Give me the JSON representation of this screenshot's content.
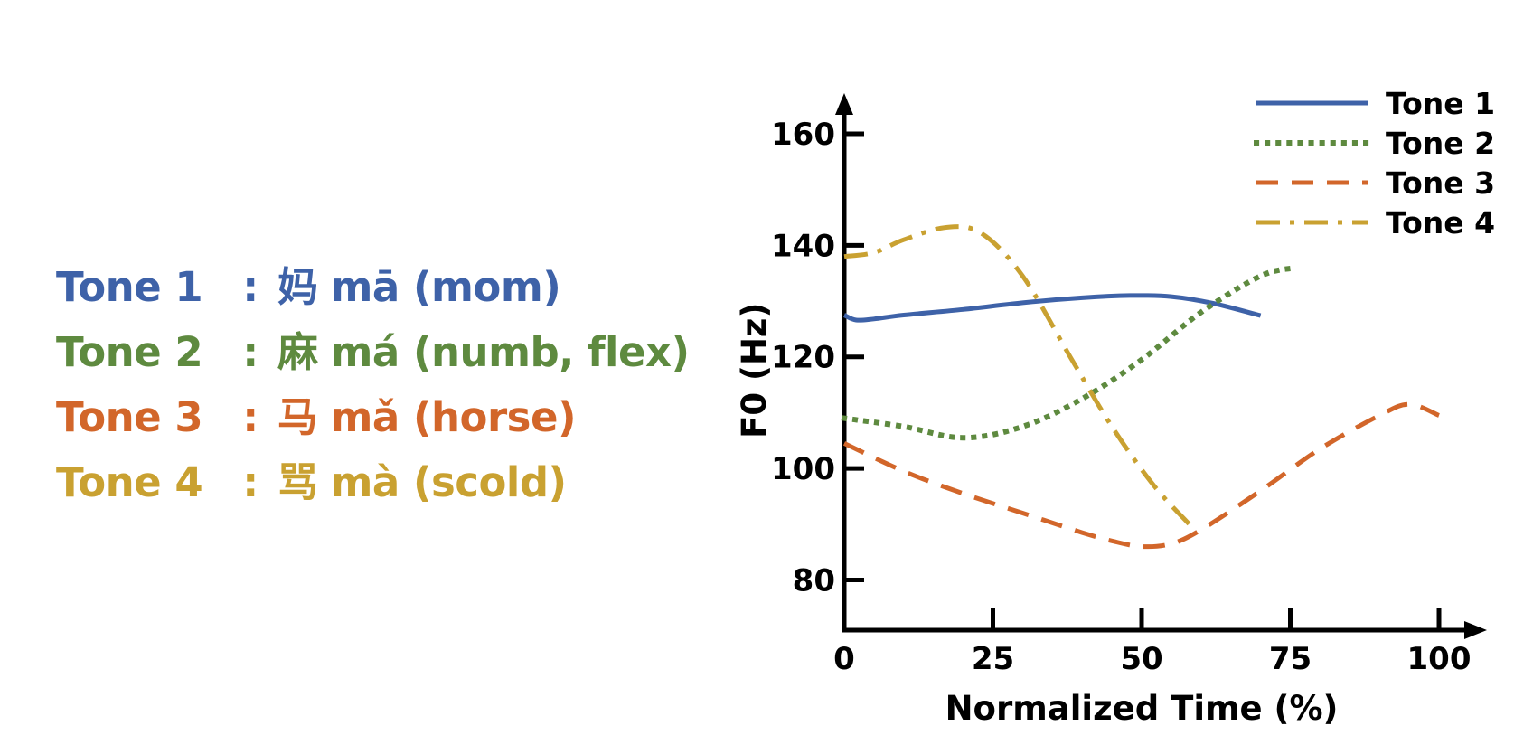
{
  "tones": [
    {
      "label": "Tone 1",
      "separator": ":",
      "character": "妈",
      "pinyin": "mā",
      "gloss": "(mom)",
      "color": "#3E62A8"
    },
    {
      "label": "Tone 2",
      "separator": ":",
      "character": "麻",
      "pinyin": "má",
      "gloss": "(numb, flex)",
      "color": "#5E8A3F"
    },
    {
      "label": "Tone 3",
      "separator": ":",
      "character": "马",
      "pinyin": "mǎ",
      "gloss": "(horse)",
      "color": "#D2662A"
    },
    {
      "label": "Tone 4",
      "separator": ":",
      "character": "骂",
      "pinyin": "mà",
      "gloss": "(scold)",
      "color": "#C9A131"
    }
  ],
  "chart_data": {
    "type": "line",
    "title": "",
    "xlabel": "Normalized Time (%)",
    "ylabel": "F0 (Hz)",
    "xlim": [
      0,
      100
    ],
    "ylim": [
      71,
      160
    ],
    "xticks": [
      0,
      25,
      50,
      75,
      100
    ],
    "yticks": [
      80,
      100,
      120,
      140,
      160
    ],
    "grid": false,
    "legend_position": "top-right",
    "series": [
      {
        "name": "Tone 1",
        "color": "#3E62A8",
        "style": "solid",
        "x": [
          0,
          2,
          5,
          10,
          20,
          30,
          40,
          48,
          55,
          62,
          70
        ],
        "y": [
          127.5,
          126.6,
          126.8,
          127.5,
          128.5,
          129.7,
          130.6,
          131.0,
          130.8,
          129.6,
          127.4
        ]
      },
      {
        "name": "Tone 2",
        "color": "#5E8A3F",
        "style": "dotted",
        "x": [
          0,
          10,
          20,
          30,
          40,
          50,
          60,
          70,
          76
        ],
        "y": [
          109,
          107.5,
          105.5,
          107.5,
          112.5,
          119.5,
          128,
          134.5,
          136
        ]
      },
      {
        "name": "Tone 3",
        "color": "#D2662A",
        "style": "dashed",
        "x": [
          0,
          10,
          20,
          30,
          40,
          45,
          50,
          55,
          60,
          70,
          80,
          90,
          95,
          100
        ],
        "y": [
          104.5,
          99.5,
          95.5,
          92,
          88.5,
          87,
          86,
          86.5,
          89,
          96,
          103.5,
          109.5,
          111.5,
          109.5
        ]
      },
      {
        "name": "Tone 4",
        "color": "#C9A131",
        "style": "dashdot",
        "x": [
          0,
          5,
          10,
          17,
          23,
          30,
          38,
          45,
          52,
          58
        ],
        "y": [
          138,
          138.7,
          141,
          143.2,
          142.2,
          134.5,
          120,
          107.5,
          97,
          90
        ]
      }
    ]
  }
}
